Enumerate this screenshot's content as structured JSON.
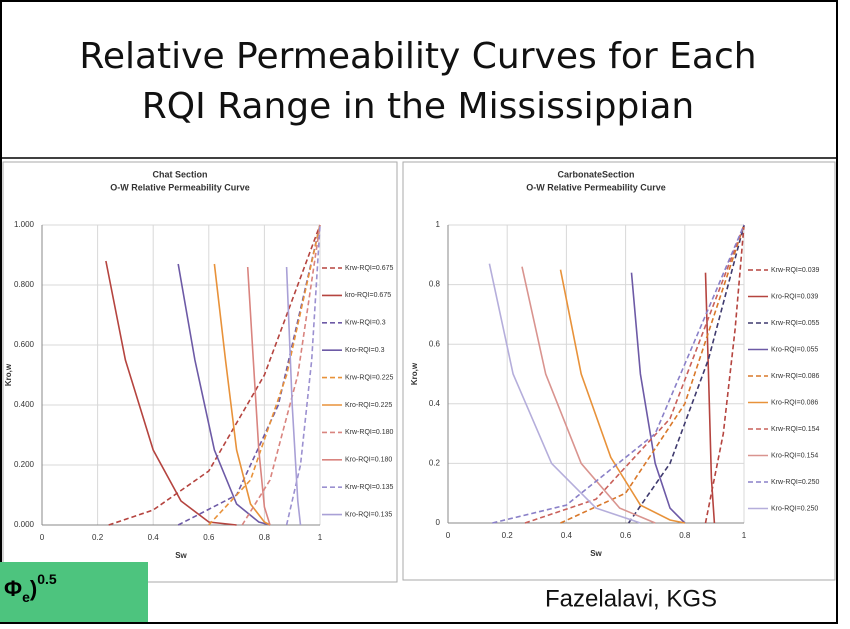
{
  "slide": {
    "title_lines": [
      "Relative Permeability Curves for Each",
      "RQI Range in the Mississippian"
    ],
    "footer": "Fazelalavi, KGS",
    "badge": {
      "symbol": "Φ",
      "sub": "e",
      "close": ")",
      "sup": "0.5"
    }
  },
  "chart_data": [
    {
      "type": "line",
      "title": "Chat Section",
      "subtitle": "O-W Relative Permeability Curve",
      "x_label": "Sw",
      "y_label": "Kro,w",
      "grid": true,
      "legend": "right",
      "xlim": [
        0,
        1
      ],
      "xticks": [
        0,
        0.2,
        0.4,
        0.6,
        0.8,
        1
      ],
      "ylim": [
        0,
        1
      ],
      "yticks": [
        {
          "value": 0,
          "label": "0.000"
        },
        {
          "value": 0.2,
          "label": "0.200"
        },
        {
          "value": 0.4,
          "label": "0.400"
        },
        {
          "value": 0.6,
          "label": "0.600"
        },
        {
          "value": 0.8,
          "label": "0.800"
        },
        {
          "value": 1,
          "label": "1.000"
        }
      ],
      "series": [
        {
          "name": "Krw-RQI=0.675",
          "color": "#b5443f",
          "dash": true,
          "x": [
            0.24,
            0.4,
            0.6,
            0.8,
            1
          ],
          "values": [
            0,
            0.05,
            0.18,
            0.5,
            1
          ]
        },
        {
          "name": "kro-RQI=0.675",
          "color": "#b5443f",
          "dash": false,
          "x": [
            0.23,
            0.3,
            0.4,
            0.5,
            0.6,
            0.7
          ],
          "values": [
            0.88,
            0.55,
            0.25,
            0.08,
            0.01,
            0
          ]
        },
        {
          "name": "Krw-RQI=0.3",
          "color": "#6d5aa6",
          "dash": true,
          "x": [
            0.49,
            0.7,
            0.85,
            1
          ],
          "values": [
            0,
            0.1,
            0.4,
            1
          ]
        },
        {
          "name": "Kro-RQI=0.3",
          "color": "#6d5aa6",
          "dash": false,
          "x": [
            0.49,
            0.55,
            0.62,
            0.7,
            0.78,
            0.82
          ],
          "values": [
            0.87,
            0.55,
            0.25,
            0.07,
            0.01,
            0
          ]
        },
        {
          "name": "Krw-RQI=0.225",
          "color": "#e8923a",
          "dash": true,
          "x": [
            0.6,
            0.75,
            0.88,
            1
          ],
          "values": [
            0,
            0.15,
            0.5,
            1
          ]
        },
        {
          "name": "Kro-RQI=0.225",
          "color": "#e8923a",
          "dash": false,
          "x": [
            0.62,
            0.66,
            0.7,
            0.75,
            0.8,
            0.82
          ],
          "values": [
            0.87,
            0.55,
            0.25,
            0.07,
            0.01,
            0
          ]
        },
        {
          "name": "Krw-RQI=0.180",
          "color": "#d9847f",
          "dash": true,
          "x": [
            0.72,
            0.82,
            0.92,
            1
          ],
          "values": [
            0,
            0.15,
            0.5,
            1
          ]
        },
        {
          "name": "Kro-RQI=0.180",
          "color": "#d9847f",
          "dash": false,
          "x": [
            0.74,
            0.76,
            0.78,
            0.8,
            0.82
          ],
          "values": [
            0.86,
            0.55,
            0.25,
            0.06,
            0
          ]
        },
        {
          "name": "Krw-RQI=0.135",
          "color": "#9b90d0",
          "dash": true,
          "x": [
            0.88,
            0.93,
            0.97,
            1
          ],
          "values": [
            0,
            0.2,
            0.55,
            1
          ]
        },
        {
          "name": "Kro-RQI=0.135",
          "color": "#a9a0d6",
          "dash": false,
          "x": [
            0.88,
            0.9,
            0.92,
            0.93
          ],
          "values": [
            0.86,
            0.4,
            0.08,
            0
          ]
        }
      ]
    },
    {
      "type": "line",
      "title": "CarbonateSection",
      "subtitle": "O-W Relative Permeability Curve",
      "x_label": "Sw",
      "y_label": "Kro,w",
      "grid": true,
      "legend": "right",
      "xlim": [
        0,
        1
      ],
      "xticks": [
        0,
        0.2,
        0.4,
        0.6,
        0.8,
        1
      ],
      "ylim": [
        0,
        1
      ],
      "yticks": [
        0,
        0.2,
        0.4,
        0.6,
        0.8,
        1
      ],
      "series": [
        {
          "name": "Krw-RQI=0.039",
          "color": "#b5443f",
          "dash": true,
          "x": [
            0.87,
            0.93,
            0.97,
            1
          ],
          "values": [
            0,
            0.3,
            0.65,
            1
          ]
        },
        {
          "name": "Kro-RQI=0.039",
          "color": "#b5443f",
          "dash": false,
          "x": [
            0.87,
            0.88,
            0.89,
            0.9
          ],
          "values": [
            0.84,
            0.5,
            0.15,
            0
          ]
        },
        {
          "name": "Krw-RQI=0.055",
          "color": "#3f3a6e",
          "dash": true,
          "x": [
            0.61,
            0.75,
            0.88,
            1
          ],
          "values": [
            0,
            0.2,
            0.55,
            1
          ]
        },
        {
          "name": "Kro-RQI=0.055",
          "color": "#6d5aa6",
          "dash": false,
          "x": [
            0.62,
            0.65,
            0.7,
            0.75,
            0.8
          ],
          "values": [
            0.84,
            0.5,
            0.2,
            0.05,
            0
          ]
        },
        {
          "name": "Krw-RQI=0.086",
          "color": "#d9782a",
          "dash": true,
          "x": [
            0.38,
            0.6,
            0.8,
            1
          ],
          "values": [
            0,
            0.1,
            0.4,
            1
          ]
        },
        {
          "name": "Kro-RQI=0.086",
          "color": "#e8923a",
          "dash": false,
          "x": [
            0.38,
            0.45,
            0.55,
            0.65,
            0.75,
            0.8
          ],
          "values": [
            0.85,
            0.5,
            0.22,
            0.06,
            0.01,
            0
          ]
        },
        {
          "name": "Krw-RQI=0.154",
          "color": "#c9605a",
          "dash": true,
          "x": [
            0.26,
            0.5,
            0.75,
            1
          ],
          "values": [
            0,
            0.08,
            0.35,
            1
          ]
        },
        {
          "name": "Kro-RQI=0.154",
          "color": "#d9948f",
          "dash": false,
          "x": [
            0.25,
            0.33,
            0.45,
            0.58,
            0.7
          ],
          "values": [
            0.86,
            0.5,
            0.2,
            0.05,
            0
          ]
        },
        {
          "name": "Krw-RQI=0.250",
          "color": "#8a80c8",
          "dash": true,
          "x": [
            0.15,
            0.4,
            0.7,
            1
          ],
          "values": [
            0,
            0.06,
            0.3,
            1
          ]
        },
        {
          "name": "Kro-RQI=0.250",
          "color": "#b5aedb",
          "dash": false,
          "x": [
            0.14,
            0.22,
            0.35,
            0.5,
            0.65
          ],
          "values": [
            0.87,
            0.5,
            0.2,
            0.05,
            0
          ]
        }
      ]
    }
  ]
}
